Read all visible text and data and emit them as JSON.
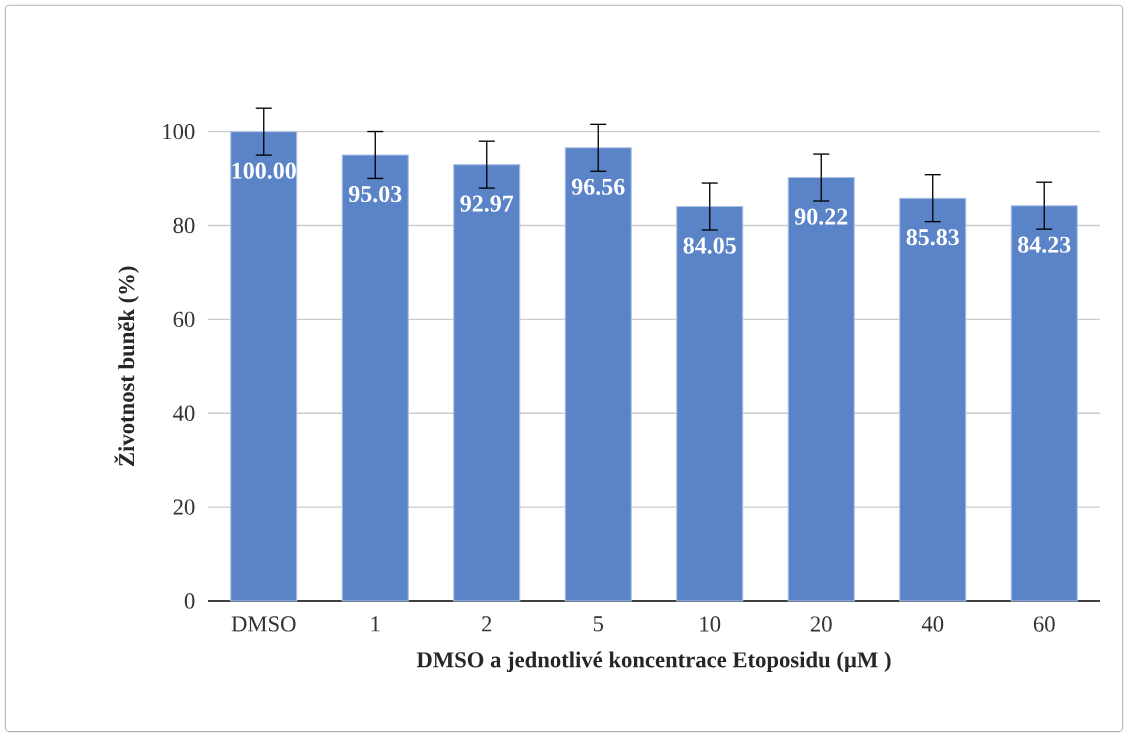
{
  "chart_data": {
    "type": "bar",
    "xlabel": "DMSO a jednotlivé koncentrace Etoposidu (µM )",
    "ylabel": "Životnost buněk  (%)",
    "categories": [
      "DMSO",
      "1",
      "2",
      "5",
      "10",
      "20",
      "40",
      "60"
    ],
    "values": [
      100.0,
      95.03,
      92.97,
      96.56,
      84.05,
      90.22,
      85.83,
      84.23
    ],
    "value_labels": [
      "100.00",
      "95.03",
      "92.97",
      "96.56",
      "84.05",
      "90.22",
      "85.83",
      "84.23"
    ],
    "errors": [
      5,
      5,
      5,
      5,
      5,
      5,
      5,
      5
    ],
    "color": "#5b84c8",
    "ylim": [
      0,
      100
    ],
    "yticks": [
      0,
      20,
      40,
      60,
      80,
      100
    ],
    "grid": "y"
  }
}
